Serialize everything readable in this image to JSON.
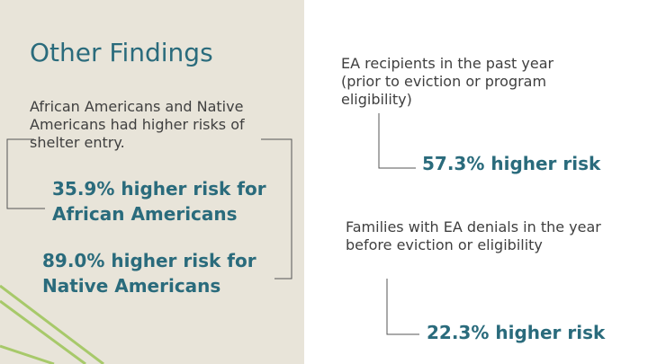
{
  "left": {
    "title": "Other Findings",
    "intro": "African Americans and Native Americans had higher risks of shelter entry.",
    "stat_african_americans": "35.9% higher risk for African Americans",
    "stat_native_americans": "89.0% higher risk for Native Americans"
  },
  "right": {
    "ea_recipients_label": "EA recipients in the past year (prior to eviction or program eligibility)",
    "ea_recipients_result": "57.3% higher risk",
    "ea_denials_label": "Families with EA denials in the year before eviction or eligibility",
    "ea_denials_result": "22.3% higher risk"
  },
  "colors": {
    "panel_background": "#e8e4d9",
    "accent_teal": "#2a6b7c",
    "decor_green": "#a7c96a",
    "body_text": "#3f3f3f",
    "bracket_line": "#555555"
  }
}
